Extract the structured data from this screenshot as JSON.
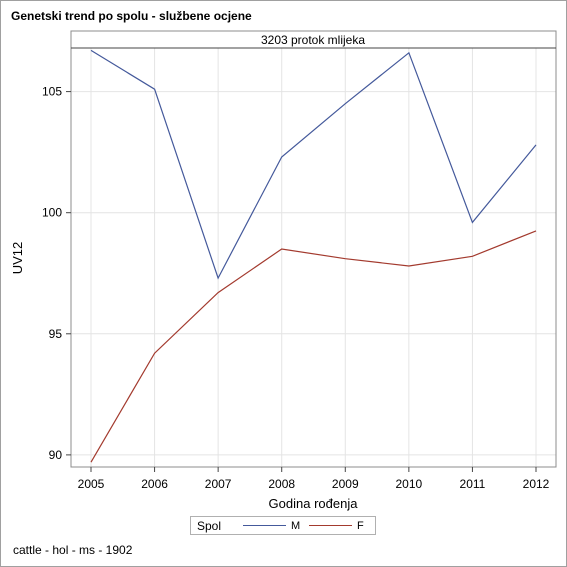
{
  "page": {
    "title": "Genetski trend po spolu - službene ocjene",
    "footer": "cattle - hol - ms - 1902"
  },
  "chart_data": {
    "type": "line",
    "panel_label": "3203 protok mlijeka",
    "xlabel": "Godina rođenja",
    "ylabel": "UV12",
    "x": [
      2005,
      2006,
      2007,
      2008,
      2009,
      2010,
      2011,
      2012
    ],
    "x_ticks": [
      "2005",
      "2006",
      "2007",
      "2008",
      "2009",
      "2010",
      "2011",
      "2012"
    ],
    "y_ticks": [
      "90",
      "95",
      "100",
      "105"
    ],
    "ylim": [
      89.5,
      106.8
    ],
    "grid": true,
    "legend_title": "Spol",
    "legend_position": "bottom",
    "series": [
      {
        "name": "M",
        "color": "#44599b",
        "values": [
          106.7,
          105.1,
          97.3,
          102.3,
          104.5,
          106.6,
          99.6,
          102.8
        ]
      },
      {
        "name": "F",
        "color": "#a33a2e",
        "values": [
          89.7,
          94.2,
          96.7,
          98.5,
          98.1,
          97.8,
          98.2,
          99.25
        ]
      }
    ]
  }
}
